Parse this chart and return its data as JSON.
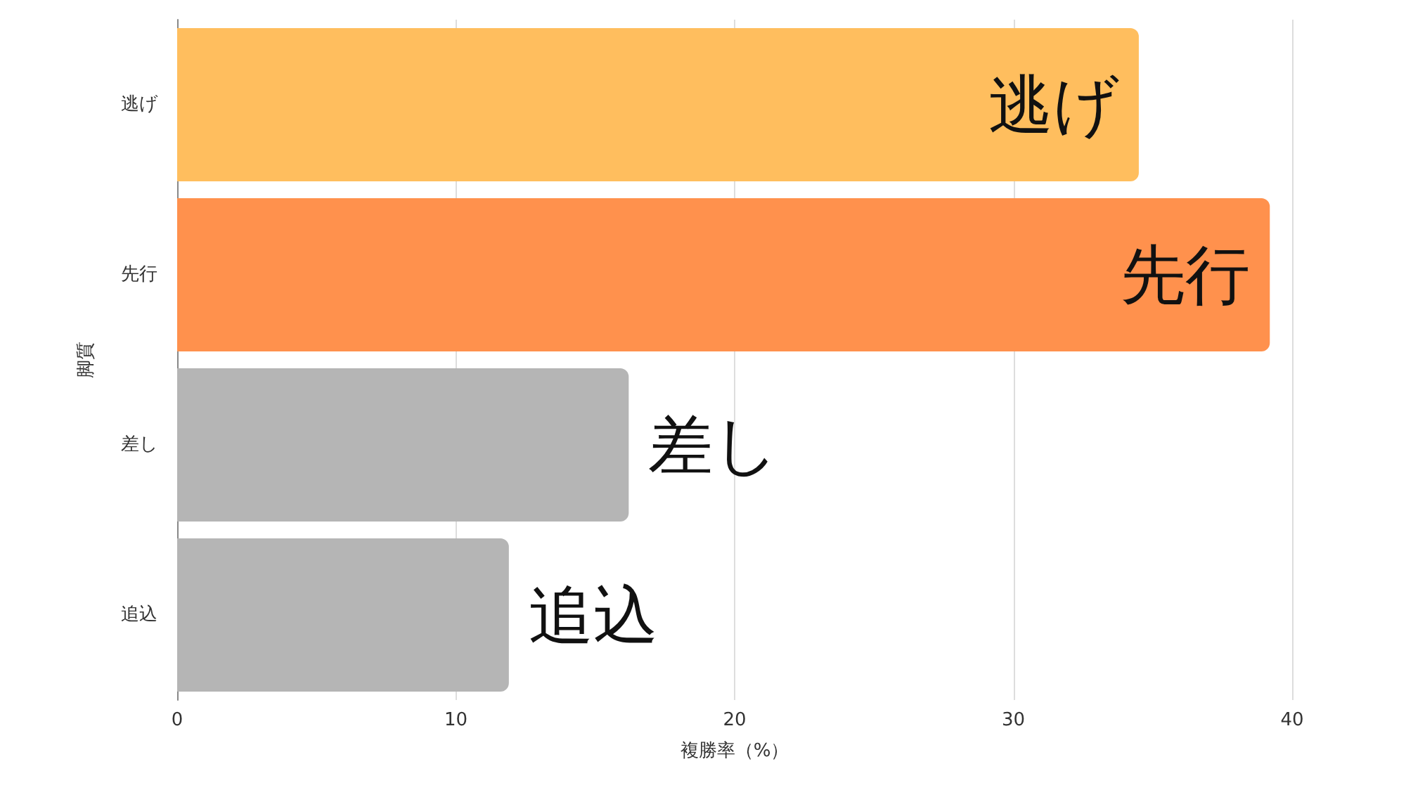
{
  "chart_data": {
    "type": "bar",
    "orientation": "horizontal",
    "xlabel": "複勝率（%）",
    "ylabel": "脚質",
    "categories": [
      "逃げ",
      "先行",
      "差し",
      "追込"
    ],
    "values": [
      34.5,
      39.2,
      16.2,
      11.9
    ],
    "colors": [
      "#ffbe5e",
      "#ff914d",
      "#b5b5b5",
      "#b5b5b5"
    ],
    "value_labels": [
      "逃げ",
      "先行",
      "差し",
      "追込"
    ],
    "xlim": [
      0,
      40
    ],
    "xticks": [
      0,
      10,
      20,
      30,
      40
    ],
    "grid": "x"
  }
}
